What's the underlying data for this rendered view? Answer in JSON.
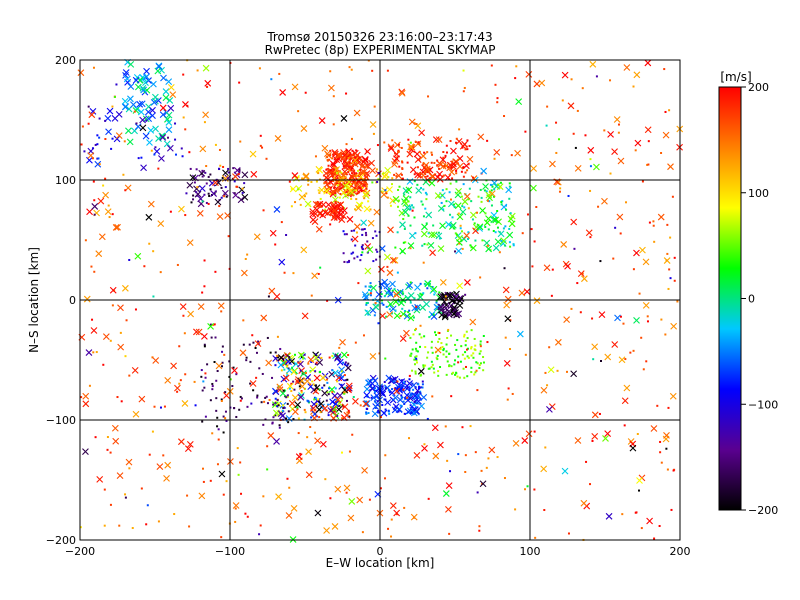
{
  "chart_data": {
    "type": "scatter",
    "title": "Tromsø 20150326 23:16:00–23:17:43",
    "subtitle": "RwPretec (8p) EXPERIMENTAL SKYMAP",
    "xlabel": "E–W location [km]",
    "ylabel": "N–S location [km]",
    "xlim": [
      -200,
      200
    ],
    "ylim": [
      -200,
      200
    ],
    "x_ticks": [
      "−200",
      "−100",
      "0",
      "100",
      "200"
    ],
    "y_ticks": [
      "−200",
      "−100",
      "0",
      "100",
      "200"
    ],
    "grid": true,
    "grid_lines_x": [
      -100,
      0,
      100
    ],
    "grid_lines_y": [
      -100,
      0,
      100
    ],
    "colorbar": {
      "unit": "[m/s]",
      "min": -200,
      "max": 200,
      "ticks": [
        "200",
        "100",
        "0",
        "−100",
        "−200"
      ],
      "tick_values": [
        200,
        100,
        0,
        -100,
        -200
      ],
      "colormap": [
        "#000000",
        "#5a0090",
        "#0000ff",
        "#00c8ff",
        "#00ff00",
        "#ffff00",
        "#ff8000",
        "#ff0000"
      ]
    },
    "marker_legend": {
      "cross": "larger cross markers",
      "small": "small point markers"
    },
    "clusters": [
      {
        "x": [
          -36,
          -8
        ],
        "y": [
          88,
          125
        ],
        "v": [
          150,
          210
        ],
        "n": 260,
        "m": "mix"
      },
      {
        "x": [
          5,
          60
        ],
        "y": [
          100,
          135
        ],
        "v": [
          150,
          210
        ],
        "n": 130,
        "m": "mix"
      },
      {
        "x": [
          -60,
          10
        ],
        "y": [
          75,
          110
        ],
        "v": [
          60,
          140
        ],
        "n": 90,
        "m": "mix"
      },
      {
        "x": [
          10,
          90
        ],
        "y": [
          40,
          100
        ],
        "v": [
          -40,
          60
        ],
        "n": 200,
        "m": "mix"
      },
      {
        "x": [
          -45,
          -20
        ],
        "y": [
          65,
          80
        ],
        "v": [
          170,
          210
        ],
        "n": 40,
        "m": "cross"
      },
      {
        "x": [
          -170,
          -140
        ],
        "y": [
          130,
          200
        ],
        "v": [
          -80,
          20
        ],
        "n": 70,
        "m": "cross"
      },
      {
        "x": [
          -200,
          -130
        ],
        "y": [
          110,
          160
        ],
        "v": [
          -130,
          -60
        ],
        "n": 40,
        "m": "mix"
      },
      {
        "x": [
          -130,
          -90
        ],
        "y": [
          80,
          110
        ],
        "v": [
          -200,
          -110
        ],
        "n": 70,
        "m": "mix"
      },
      {
        "x": [
          -25,
          0
        ],
        "y": [
          30,
          60
        ],
        "v": [
          -150,
          -90
        ],
        "n": 40,
        "m": "small"
      },
      {
        "x": [
          -10,
          40
        ],
        "y": [
          -15,
          15
        ],
        "v": [
          -70,
          40
        ],
        "n": 120,
        "m": "mix"
      },
      {
        "x": [
          40,
          55
        ],
        "y": [
          -15,
          5
        ],
        "v": [
          -220,
          -140
        ],
        "n": 40,
        "m": "cross"
      },
      {
        "x": [
          20,
          70
        ],
        "y": [
          -65,
          -25
        ],
        "v": [
          20,
          80
        ],
        "n": 130,
        "m": "small"
      },
      {
        "x": [
          -10,
          30
        ],
        "y": [
          -95,
          -65
        ],
        "v": [
          -110,
          -40
        ],
        "n": 170,
        "m": "mix"
      },
      {
        "x": [
          -70,
          -20
        ],
        "y": [
          -100,
          -45
        ],
        "v": [
          -220,
          210
        ],
        "n": 230,
        "m": "mix"
      },
      {
        "x": [
          -120,
          -60
        ],
        "y": [
          -110,
          -30
        ],
        "v": [
          -210,
          -130
        ],
        "n": 90,
        "m": "small"
      },
      {
        "x": [
          -200,
          200
        ],
        "y": [
          -200,
          200
        ],
        "v": [
          120,
          210
        ],
        "n": 650,
        "m": "mix"
      },
      {
        "x": [
          -200,
          200
        ],
        "y": [
          -200,
          200
        ],
        "v": [
          -210,
          210
        ],
        "n": 160,
        "m": "mix"
      }
    ]
  }
}
